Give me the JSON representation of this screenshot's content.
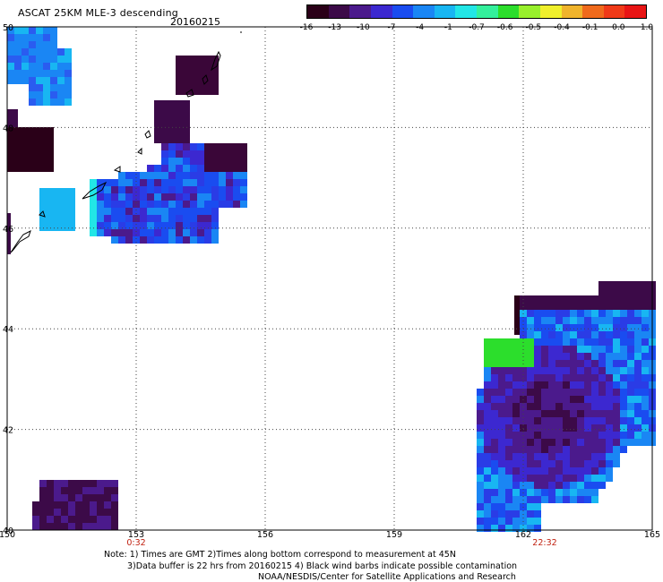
{
  "header": {
    "title": "ASCAT 25KM MLE-3 descending",
    "date": "20160215"
  },
  "colorbar": {
    "colors": [
      "#2a0018",
      "#3c0a48",
      "#4b1a8c",
      "#3c28d0",
      "#1a4cf0",
      "#1a86f4",
      "#18b6f2",
      "#22e6e6",
      "#34f09c",
      "#2cde2c",
      "#98f02c",
      "#f0f02c",
      "#f0b42c",
      "#f06a1c",
      "#f03a18",
      "#e81414"
    ],
    "labels": [
      "-16",
      "-13",
      "-10",
      "-7",
      "-4",
      "-1",
      "-0.7",
      "-0.6",
      "-0.5",
      "-0.4",
      "-0.1",
      "0.0",
      "1.0"
    ]
  },
  "axes": {
    "lon_ticks": [
      "150",
      "153",
      "156",
      "159",
      "162",
      "165"
    ],
    "lat_ticks": [
      "40",
      "42",
      "44",
      "46",
      "48",
      "50"
    ],
    "lon_range": [
      150,
      165
    ],
    "lat_range": [
      40,
      50
    ],
    "grid": true
  },
  "times": [
    {
      "label": "0:32",
      "lon": 153
    },
    {
      "label": "22:32",
      "lon": 162.5
    }
  ],
  "notes": [
    "Note: 1) Times are GMT 2)Times along bottom correspond to measurement at 45N",
    "3)Data buffer is 22 hrs from 20160215 4) Black wind barbs indicate possible contamination",
    "NOAA/NESDIS/Center for Satellite Applications and Research"
  ]
}
